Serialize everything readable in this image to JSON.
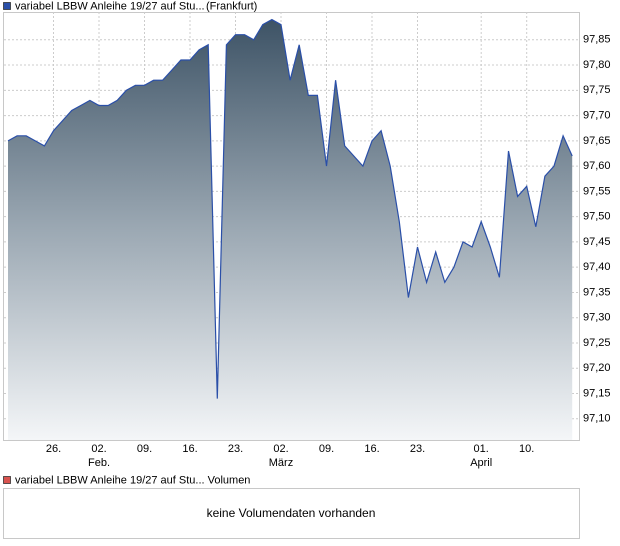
{
  "chart_data": {
    "type": "area",
    "title": "variabel LBBW Anleihe 19/27 auf Stu...",
    "subtitle": "(Frankfurt)",
    "categories": [
      null,
      null,
      null,
      null,
      null,
      "26.",
      null,
      null,
      null,
      null,
      "02.",
      null,
      null,
      null,
      null,
      "09.",
      null,
      null,
      null,
      null,
      "16.",
      null,
      null,
      null,
      null,
      "23.",
      null,
      null,
      null,
      null,
      "02.",
      null,
      null,
      null,
      null,
      "09.",
      null,
      null,
      null,
      null,
      "16.",
      null,
      null,
      null,
      null,
      "23.",
      null,
      null,
      null,
      null,
      null,
      null,
      "01.",
      null,
      null,
      null,
      null,
      "10.",
      null,
      null,
      null,
      null,
      null
    ],
    "month_labels": [
      {
        "index": 10,
        "label": "Feb."
      },
      {
        "index": 30,
        "label": "März"
      },
      {
        "index": 52,
        "label": "April"
      }
    ],
    "series": [
      {
        "name": "variabel LBBW Anleihe 19/27 auf Stu...",
        "color": "#2a4fa8",
        "values": [
          97.65,
          97.66,
          97.66,
          97.65,
          97.64,
          97.67,
          97.69,
          97.71,
          97.72,
          97.73,
          97.72,
          97.72,
          97.73,
          97.75,
          97.76,
          97.76,
          97.77,
          97.77,
          97.79,
          97.81,
          97.81,
          97.83,
          97.84,
          97.14,
          97.84,
          97.86,
          97.86,
          97.85,
          97.88,
          97.89,
          97.88,
          97.77,
          97.84,
          97.74,
          97.74,
          97.6,
          97.77,
          97.64,
          97.62,
          97.6,
          97.65,
          97.67,
          97.6,
          97.49,
          97.34,
          97.44,
          97.37,
          97.43,
          97.37,
          97.4,
          97.45,
          97.44,
          97.49,
          97.44,
          97.38,
          97.63,
          97.54,
          97.56,
          97.48,
          97.58,
          97.6,
          97.66,
          97.62
        ]
      }
    ],
    "ylim": [
      97.058,
      97.905
    ],
    "yticks": [
      {
        "value": 97.1,
        "label": "97,10"
      },
      {
        "value": 97.15,
        "label": "97,15"
      },
      {
        "value": 97.2,
        "label": "97,20"
      },
      {
        "value": 97.25,
        "label": "97,25"
      },
      {
        "value": 97.3,
        "label": "97,30"
      },
      {
        "value": 97.35,
        "label": "97,35"
      },
      {
        "value": 97.4,
        "label": "97,40"
      },
      {
        "value": 97.45,
        "label": "97,45"
      },
      {
        "value": 97.5,
        "label": "97,50"
      },
      {
        "value": 97.55,
        "label": "97,55"
      },
      {
        "value": 97.6,
        "label": "97,60"
      },
      {
        "value": 97.65,
        "label": "97,65"
      },
      {
        "value": 97.7,
        "label": "97,70"
      },
      {
        "value": 97.75,
        "label": "97,75"
      },
      {
        "value": 97.8,
        "label": "97,80"
      },
      {
        "value": 97.85,
        "label": "97,85"
      }
    ],
    "grid": true,
    "volume_panel": {
      "title": "variabel LBBW Anleihe 19/27 auf Stu... Volumen",
      "color": "#d9534f",
      "message": "keine Volumendaten vorhanden"
    }
  }
}
